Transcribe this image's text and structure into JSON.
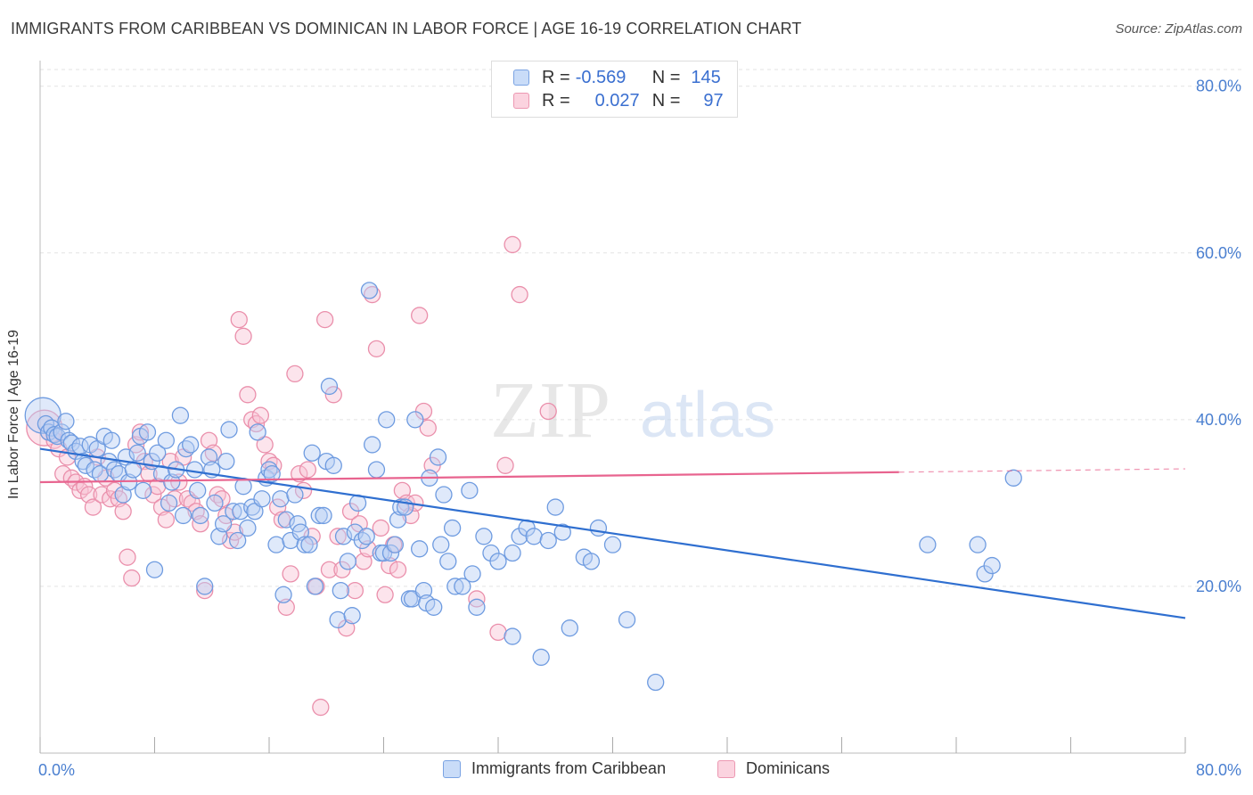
{
  "header": {
    "title": "IMMIGRANTS FROM CARIBBEAN VS DOMINICAN IN LABOR FORCE | AGE 16-19 CORRELATION CHART",
    "source": "Source: ZipAtlas.com"
  },
  "watermark": {
    "zip": "ZIP",
    "atlas": "atlas"
  },
  "legend": {
    "series1": {
      "r_label": "R =",
      "r_value": "-0.569",
      "n_label": "N =",
      "n_value": "145"
    },
    "series2": {
      "r_label": "R =",
      "r_value": "0.027",
      "n_label": "N =",
      "n_value": "97"
    }
  },
  "bottom_legend": {
    "series1": "Immigrants from Caribbean",
    "series2": "Dominicans"
  },
  "colors": {
    "blue_fill": "#b8cff5",
    "blue_stroke": "#6e9be0",
    "blue_line": "#2f6fd0",
    "pink_fill": "#f8c4d4",
    "pink_stroke": "#ea8fab",
    "pink_line": "#e8648f",
    "axis_text": "#4a7fd0",
    "grid": "#e3e3e3"
  },
  "chart_data": {
    "type": "scatter",
    "title": "IMMIGRANTS FROM CARIBBEAN VS DOMINICAN IN LABOR FORCE | AGE 16-19 CORRELATION CHART",
    "xlabel": "",
    "ylabel": "In Labor Force | Age 16-19",
    "xlim": [
      0,
      80
    ],
    "ylim": [
      0,
      82
    ],
    "x_tick_labels": [
      "0.0%",
      "80.0%"
    ],
    "y_ticks": [
      20,
      40,
      60,
      80
    ],
    "y_tick_labels": [
      "20.0%",
      "40.0%",
      "60.0%",
      "80.0%"
    ],
    "grid": true,
    "legend_position": "top-center",
    "series": [
      {
        "name": "Immigrants from Caribbean",
        "color": "#6e9be0",
        "trend": {
          "x": [
            0,
            80
          ],
          "y": [
            36.5,
            16.2
          ]
        },
        "points": [
          [
            0.2,
            40.5
          ],
          [
            0.4,
            39.5
          ],
          [
            0.6,
            38.5
          ],
          [
            0.8,
            39.0
          ],
          [
            1.0,
            38.2
          ],
          [
            1.2,
            38.0
          ],
          [
            1.5,
            38.5
          ],
          [
            1.8,
            39.8
          ],
          [
            2.0,
            37.5
          ],
          [
            2.2,
            37.2
          ],
          [
            2.5,
            36.2
          ],
          [
            2.8,
            36.8
          ],
          [
            3.0,
            35.0
          ],
          [
            3.2,
            34.5
          ],
          [
            3.5,
            37.0
          ],
          [
            3.8,
            34.0
          ],
          [
            4.0,
            36.5
          ],
          [
            4.2,
            33.5
          ],
          [
            4.5,
            38.0
          ],
          [
            4.8,
            35.0
          ],
          [
            5.0,
            37.5
          ],
          [
            5.2,
            34.0
          ],
          [
            5.5,
            33.5
          ],
          [
            5.8,
            31.0
          ],
          [
            6.0,
            35.5
          ],
          [
            6.2,
            32.5
          ],
          [
            6.5,
            34.0
          ],
          [
            6.8,
            36.0
          ],
          [
            7.0,
            38.0
          ],
          [
            7.2,
            31.5
          ],
          [
            7.5,
            38.5
          ],
          [
            7.8,
            35.0
          ],
          [
            8.0,
            22.0
          ],
          [
            8.2,
            36.0
          ],
          [
            8.5,
            33.5
          ],
          [
            8.8,
            37.5
          ],
          [
            9.0,
            30.0
          ],
          [
            9.2,
            32.5
          ],
          [
            9.5,
            34.0
          ],
          [
            9.8,
            40.5
          ],
          [
            10.0,
            28.5
          ],
          [
            10.2,
            36.5
          ],
          [
            10.5,
            37.0
          ],
          [
            10.8,
            34.0
          ],
          [
            11.0,
            31.5
          ],
          [
            11.2,
            28.5
          ],
          [
            11.5,
            20.0
          ],
          [
            11.8,
            35.5
          ],
          [
            12.0,
            34.0
          ],
          [
            12.2,
            30.0
          ],
          [
            12.5,
            26.0
          ],
          [
            12.8,
            27.5
          ],
          [
            13.0,
            35.0
          ],
          [
            13.2,
            38.8
          ],
          [
            13.5,
            29.0
          ],
          [
            13.8,
            25.5
          ],
          [
            14.0,
            29.0
          ],
          [
            14.2,
            32.0
          ],
          [
            14.5,
            27.0
          ],
          [
            14.8,
            29.5
          ],
          [
            15.0,
            29.0
          ],
          [
            15.2,
            38.5
          ],
          [
            15.5,
            30.5
          ],
          [
            15.8,
            33.0
          ],
          [
            16.0,
            34.0
          ],
          [
            16.2,
            33.5
          ],
          [
            16.5,
            25.0
          ],
          [
            16.8,
            30.5
          ],
          [
            17.0,
            19.0
          ],
          [
            17.2,
            28.0
          ],
          [
            17.5,
            25.5
          ],
          [
            17.8,
            31.0
          ],
          [
            18.0,
            27.5
          ],
          [
            18.2,
            26.5
          ],
          [
            18.5,
            25.0
          ],
          [
            18.8,
            25.0
          ],
          [
            19.0,
            36.0
          ],
          [
            19.2,
            20.0
          ],
          [
            19.5,
            28.5
          ],
          [
            19.8,
            28.5
          ],
          [
            20.0,
            35.0
          ],
          [
            20.2,
            44.0
          ],
          [
            20.5,
            34.5
          ],
          [
            20.8,
            16.0
          ],
          [
            21.0,
            19.5
          ],
          [
            21.2,
            26.0
          ],
          [
            21.5,
            23.0
          ],
          [
            21.8,
            16.5
          ],
          [
            22.0,
            26.5
          ],
          [
            22.2,
            30.0
          ],
          [
            22.5,
            25.5
          ],
          [
            22.8,
            26.0
          ],
          [
            23.0,
            55.5
          ],
          [
            23.2,
            37.0
          ],
          [
            23.5,
            34.0
          ],
          [
            23.8,
            24.0
          ],
          [
            24.0,
            24.0
          ],
          [
            24.2,
            40.0
          ],
          [
            24.5,
            24.0
          ],
          [
            24.8,
            25.0
          ],
          [
            25.0,
            28.0
          ],
          [
            25.2,
            29.5
          ],
          [
            25.5,
            29.5
          ],
          [
            25.8,
            18.5
          ],
          [
            26.0,
            18.5
          ],
          [
            26.2,
            40.0
          ],
          [
            26.5,
            24.5
          ],
          [
            26.8,
            19.5
          ],
          [
            27.0,
            18.0
          ],
          [
            27.2,
            33.0
          ],
          [
            27.5,
            17.5
          ],
          [
            27.8,
            35.5
          ],
          [
            28.0,
            25.0
          ],
          [
            28.2,
            31.0
          ],
          [
            28.5,
            23.0
          ],
          [
            28.8,
            27.0
          ],
          [
            29.0,
            20.0
          ],
          [
            29.5,
            20.0
          ],
          [
            30.0,
            31.5
          ],
          [
            30.2,
            21.5
          ],
          [
            30.5,
            17.5
          ],
          [
            31.0,
            26.0
          ],
          [
            31.5,
            24.0
          ],
          [
            32.0,
            23.0
          ],
          [
            33.0,
            24.0
          ],
          [
            33.5,
            26.0
          ],
          [
            34.0,
            27.0
          ],
          [
            34.5,
            26.0
          ],
          [
            35.0,
            11.5
          ],
          [
            35.5,
            25.5
          ],
          [
            36.0,
            29.5
          ],
          [
            36.5,
            26.5
          ],
          [
            37.0,
            15.0
          ],
          [
            38.0,
            23.5
          ],
          [
            38.5,
            23.0
          ],
          [
            39.0,
            27.0
          ],
          [
            40.0,
            25.0
          ],
          [
            41.0,
            16.0
          ],
          [
            43.0,
            8.5
          ],
          [
            33.0,
            14.0
          ],
          [
            62.0,
            25.0
          ],
          [
            68.0,
            33.0
          ],
          [
            65.5,
            25.0
          ],
          [
            66.0,
            21.5
          ],
          [
            66.5,
            22.5
          ]
        ]
      },
      {
        "name": "Dominicans",
        "color": "#ea8fab",
        "trend": {
          "x": [
            0,
            60
          ],
          "y": [
            32.5,
            33.7
          ]
        },
        "points": [
          [
            0.3,
            39.0
          ],
          [
            0.6,
            38.5
          ],
          [
            1.0,
            37.5
          ],
          [
            1.3,
            36.5
          ],
          [
            1.6,
            33.5
          ],
          [
            1.9,
            35.5
          ],
          [
            2.2,
            33.0
          ],
          [
            2.5,
            32.5
          ],
          [
            2.8,
            31.5
          ],
          [
            3.1,
            32.0
          ],
          [
            3.4,
            31.0
          ],
          [
            3.7,
            29.5
          ],
          [
            4.0,
            35.5
          ],
          [
            4.3,
            31.0
          ],
          [
            4.6,
            33.0
          ],
          [
            4.9,
            30.5
          ],
          [
            5.2,
            31.5
          ],
          [
            5.5,
            30.5
          ],
          [
            5.8,
            29.0
          ],
          [
            6.1,
            23.5
          ],
          [
            6.4,
            21.0
          ],
          [
            6.7,
            37.0
          ],
          [
            7.0,
            38.5
          ],
          [
            7.3,
            35.0
          ],
          [
            7.6,
            33.5
          ],
          [
            7.9,
            31.0
          ],
          [
            8.2,
            32.0
          ],
          [
            8.5,
            29.5
          ],
          [
            8.8,
            28.0
          ],
          [
            9.1,
            35.0
          ],
          [
            9.4,
            30.5
          ],
          [
            9.7,
            32.5
          ],
          [
            10.0,
            35.5
          ],
          [
            10.3,
            30.5
          ],
          [
            10.6,
            30.0
          ],
          [
            10.9,
            29.0
          ],
          [
            11.2,
            27.5
          ],
          [
            11.5,
            19.5
          ],
          [
            11.8,
            37.5
          ],
          [
            12.1,
            36.0
          ],
          [
            12.4,
            31.0
          ],
          [
            12.7,
            30.5
          ],
          [
            13.0,
            28.5
          ],
          [
            13.3,
            25.5
          ],
          [
            13.6,
            26.5
          ],
          [
            13.9,
            52.0
          ],
          [
            14.2,
            50.0
          ],
          [
            14.5,
            43.0
          ],
          [
            14.8,
            40.0
          ],
          [
            15.1,
            39.5
          ],
          [
            15.4,
            40.5
          ],
          [
            15.7,
            37.0
          ],
          [
            16.0,
            35.0
          ],
          [
            16.3,
            34.5
          ],
          [
            16.6,
            29.5
          ],
          [
            16.9,
            28.0
          ],
          [
            17.2,
            17.5
          ],
          [
            17.5,
            21.5
          ],
          [
            17.8,
            45.5
          ],
          [
            18.1,
            33.5
          ],
          [
            18.4,
            31.5
          ],
          [
            18.7,
            34.0
          ],
          [
            19.0,
            26.0
          ],
          [
            19.3,
            20.0
          ],
          [
            19.6,
            5.5
          ],
          [
            19.9,
            52.0
          ],
          [
            20.2,
            22.0
          ],
          [
            20.5,
            43.0
          ],
          [
            20.8,
            26.0
          ],
          [
            21.1,
            22.0
          ],
          [
            21.4,
            15.0
          ],
          [
            21.7,
            29.0
          ],
          [
            22.0,
            19.5
          ],
          [
            22.3,
            27.5
          ],
          [
            22.6,
            23.0
          ],
          [
            22.9,
            24.5
          ],
          [
            23.2,
            55.0
          ],
          [
            23.5,
            48.5
          ],
          [
            23.8,
            27.0
          ],
          [
            24.1,
            19.0
          ],
          [
            24.4,
            22.5
          ],
          [
            24.7,
            25.0
          ],
          [
            25.0,
            22.0
          ],
          [
            25.3,
            31.5
          ],
          [
            25.6,
            30.0
          ],
          [
            25.9,
            28.5
          ],
          [
            26.2,
            30.0
          ],
          [
            26.5,
            52.5
          ],
          [
            26.8,
            41.0
          ],
          [
            27.1,
            39.0
          ],
          [
            27.4,
            34.5
          ],
          [
            30.5,
            18.5
          ],
          [
            32.0,
            14.5
          ],
          [
            32.5,
            34.5
          ],
          [
            33.0,
            61.0
          ],
          [
            33.5,
            55.0
          ],
          [
            35.5,
            41.0
          ]
        ]
      }
    ]
  }
}
